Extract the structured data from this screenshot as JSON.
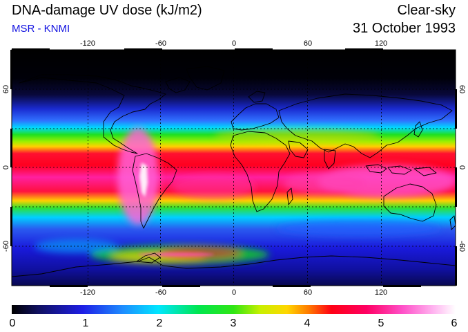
{
  "header": {
    "title": "DNA-damage UV dose (kJ/m2)",
    "subtitle": "MSR - KNMI",
    "condition": "Clear-sky",
    "date": "31 October 1993"
  },
  "map": {
    "lon_ticks": [
      "-120",
      "-60",
      "0",
      "60",
      "120"
    ],
    "lat_ticks": [
      "60",
      "0",
      "-60"
    ],
    "lon_range": [
      -180,
      180
    ],
    "lat_range": [
      -90,
      90
    ]
  },
  "colorbar": {
    "labels": [
      "0",
      "1",
      "2",
      "3",
      "4",
      "5",
      "6"
    ],
    "min": 0,
    "max": 6
  },
  "colors": {
    "subtitle": "#1010e0",
    "scale": [
      "#000000",
      "#1e1ee6",
      "#00e6ff",
      "#14e614",
      "#ffd700",
      "#ff0014",
      "#ff50c8",
      "#ffffff"
    ]
  }
}
